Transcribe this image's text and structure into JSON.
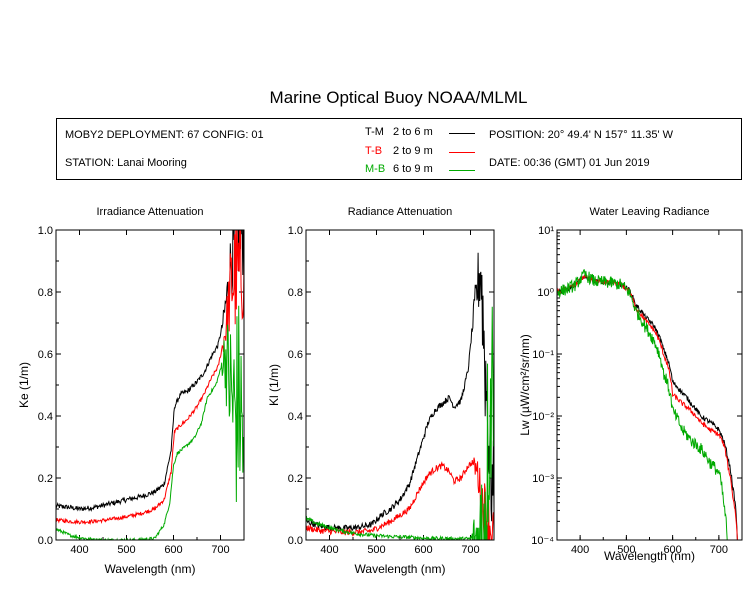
{
  "title": "Marine Optical Buoy NOAA/MLML",
  "info": {
    "deployment": "MOBY2 DEPLOYMENT: 67 CONFIG: 01",
    "station": "STATION: Lanai Mooring",
    "position": "POSITION: 20° 49.4' N   157° 11.35' W",
    "date": "DATE: 00:36 (GMT) 01 Jun 2019"
  },
  "legend": [
    {
      "code": "T-M",
      "range": "2 to 6  m",
      "color": "#000000"
    },
    {
      "code": "T-B",
      "range": "2 to 9  m",
      "color": "#ff0000"
    },
    {
      "code": "M-B",
      "range": "6 to 9  m",
      "color": "#00aa00"
    }
  ],
  "chart_data": [
    {
      "type": "line",
      "title": "Irradiance Attenuation",
      "xlabel": "Wavelength (nm)",
      "ylabel": "Ke  (1/m)",
      "xlim": [
        350,
        750
      ],
      "ylim": [
        0,
        1
      ],
      "xticks": [
        "400",
        "500",
        "600",
        "700"
      ],
      "yticks": [
        "0.0",
        "0.2",
        "0.4",
        "0.6",
        "0.8",
        "1.0"
      ],
      "series": [
        {
          "name": "T-M",
          "color": "#000000",
          "noise": 0.008,
          "noise_end": 0.15,
          "x": [
            350,
            380,
            400,
            430,
            460,
            500,
            530,
            560,
            580,
            595,
            602,
            615,
            630,
            650,
            665,
            680,
            695,
            705,
            715,
            722,
            730,
            740,
            750
          ],
          "y": [
            0.11,
            0.105,
            0.1,
            0.105,
            0.115,
            0.13,
            0.14,
            0.155,
            0.18,
            0.29,
            0.43,
            0.47,
            0.48,
            0.51,
            0.54,
            0.59,
            0.63,
            0.7,
            0.8,
            0.9,
            0.95,
            0.98,
            1.0
          ]
        },
        {
          "name": "T-B",
          "color": "#ff0000",
          "noise": 0.006,
          "noise_end": 0.2,
          "x": [
            350,
            380,
            400,
            430,
            460,
            500,
            530,
            560,
            580,
            595,
            602,
            615,
            630,
            650,
            665,
            680,
            695,
            705,
            715,
            722,
            730,
            740,
            750
          ],
          "y": [
            0.065,
            0.06,
            0.058,
            0.06,
            0.065,
            0.075,
            0.085,
            0.1,
            0.13,
            0.22,
            0.35,
            0.37,
            0.39,
            0.43,
            0.47,
            0.52,
            0.56,
            0.63,
            0.72,
            0.82,
            0.85,
            0.85,
            0.9
          ]
        },
        {
          "name": "M-B",
          "color": "#00aa00",
          "noise": 0.005,
          "noise_end": 0.35,
          "x": [
            350,
            365,
            380,
            400,
            420,
            450,
            480,
            520,
            560,
            580,
            592,
            600,
            608,
            625,
            645,
            660,
            672,
            690,
            700,
            710,
            720,
            730,
            740,
            750
          ],
          "y": [
            0.035,
            0.025,
            0.015,
            0.008,
            0.003,
            0.0,
            0.0,
            0.0,
            0.005,
            0.05,
            0.12,
            0.24,
            0.28,
            0.3,
            0.33,
            0.38,
            0.46,
            0.5,
            0.55,
            0.6,
            0.5,
            0.4,
            0.45,
            0.3
          ]
        }
      ]
    },
    {
      "type": "line",
      "title": "Radiance Attenuation",
      "xlabel": "Wavelength (nm)",
      "ylabel": "Kl  (1/m)",
      "xlim": [
        350,
        750
      ],
      "ylim": [
        0,
        1
      ],
      "xticks": [
        "400",
        "500",
        "600",
        "700"
      ],
      "yticks": [
        "0.0",
        "0.2",
        "0.4",
        "0.6",
        "0.8",
        "1.0"
      ],
      "series": [
        {
          "name": "T-M",
          "color": "#000000",
          "noise": 0.01,
          "noise_end": 0.2,
          "x": [
            350,
            380,
            400,
            430,
            460,
            490,
            510,
            530,
            550,
            570,
            590,
            610,
            625,
            640,
            655,
            665,
            680,
            695,
            705,
            715,
            722,
            730,
            740,
            750
          ],
          "y": [
            0.06,
            0.045,
            0.04,
            0.038,
            0.04,
            0.05,
            0.08,
            0.1,
            0.13,
            0.18,
            0.28,
            0.38,
            0.42,
            0.44,
            0.46,
            0.43,
            0.45,
            0.55,
            0.7,
            0.82,
            0.88,
            0.6,
            0.3,
            0.1
          ]
        },
        {
          "name": "T-B",
          "color": "#ff0000",
          "noise": 0.01,
          "noise_end": 0.1,
          "x": [
            350,
            380,
            400,
            430,
            460,
            490,
            510,
            530,
            550,
            570,
            590,
            610,
            625,
            640,
            655,
            665,
            680,
            695,
            705,
            715,
            722,
            730,
            740,
            750
          ],
          "y": [
            0.04,
            0.03,
            0.028,
            0.025,
            0.025,
            0.03,
            0.045,
            0.06,
            0.08,
            0.1,
            0.16,
            0.21,
            0.23,
            0.24,
            0.22,
            0.19,
            0.2,
            0.24,
            0.25,
            0.22,
            0.15,
            0.1,
            0.05,
            0.02
          ]
        },
        {
          "name": "M-B",
          "color": "#00aa00",
          "noise": 0.006,
          "noise_end": 0.35,
          "x": [
            350,
            370,
            390,
            410,
            430,
            460,
            490,
            520,
            550,
            580,
            600,
            620,
            640,
            660,
            680,
            700,
            710,
            720,
            730,
            740,
            750
          ],
          "y": [
            0.07,
            0.055,
            0.045,
            0.035,
            0.028,
            0.02,
            0.015,
            0.012,
            0.01,
            0.008,
            0.006,
            0.005,
            0.005,
            0.004,
            0.004,
            0.004,
            0.0,
            0.0,
            0.1,
            0.4,
            0.6
          ]
        }
      ]
    },
    {
      "type": "line",
      "title": "Water Leaving Radiance",
      "xlabel": "Wavelength (nm)",
      "ylabel": "Lw  (µW/cm²/sr/nm)",
      "yscale": "log",
      "xlim": [
        350,
        750
      ],
      "ylim": [
        0.0001,
        10
      ],
      "xticks": [
        "400",
        "500",
        "600",
        "700"
      ],
      "yticks": [
        "10⁻⁴",
        "10⁻³",
        "10⁻²",
        "10⁻¹",
        "10⁰",
        "10¹"
      ],
      "series": [
        {
          "name": "T-M",
          "color": "#000000",
          "noise": 0.02,
          "x": [
            350,
            370,
            390,
            410,
            430,
            450,
            470,
            490,
            505,
            520,
            540,
            560,
            580,
            600,
            620,
            640,
            660,
            680,
            700,
            710,
            720,
            730,
            740
          ],
          "y": [
            1.0,
            1.1,
            1.3,
            1.8,
            1.5,
            1.45,
            1.4,
            1.3,
            1.1,
            0.62,
            0.4,
            0.28,
            0.12,
            0.035,
            0.024,
            0.016,
            0.01,
            0.008,
            0.006,
            0.004,
            0.002,
            0.0007,
            0.0001
          ]
        },
        {
          "name": "T-B",
          "color": "#ff0000",
          "noise": 0.02,
          "x": [
            350,
            370,
            390,
            410,
            430,
            450,
            470,
            490,
            505,
            520,
            540,
            560,
            580,
            600,
            620,
            640,
            660,
            680,
            700,
            710,
            720,
            730,
            740
          ],
          "y": [
            1.0,
            1.1,
            1.3,
            1.8,
            1.5,
            1.45,
            1.4,
            1.3,
            1.05,
            0.55,
            0.35,
            0.24,
            0.1,
            0.022,
            0.016,
            0.012,
            0.008,
            0.006,
            0.005,
            0.0035,
            0.0015,
            0.0005,
            0.0001
          ]
        },
        {
          "name": "M-B",
          "color": "#00aa00",
          "noise": 0.05,
          "x": [
            350,
            370,
            390,
            410,
            430,
            450,
            470,
            490,
            505,
            520,
            540,
            560,
            580,
            600,
            620,
            640,
            660,
            680,
            700,
            710,
            718
          ],
          "y": [
            1.0,
            1.1,
            1.3,
            1.9,
            1.5,
            1.45,
            1.4,
            1.3,
            1.0,
            0.5,
            0.28,
            0.16,
            0.05,
            0.012,
            0.006,
            0.004,
            0.003,
            0.0018,
            0.0012,
            0.0004,
            0.0001
          ]
        }
      ]
    }
  ]
}
